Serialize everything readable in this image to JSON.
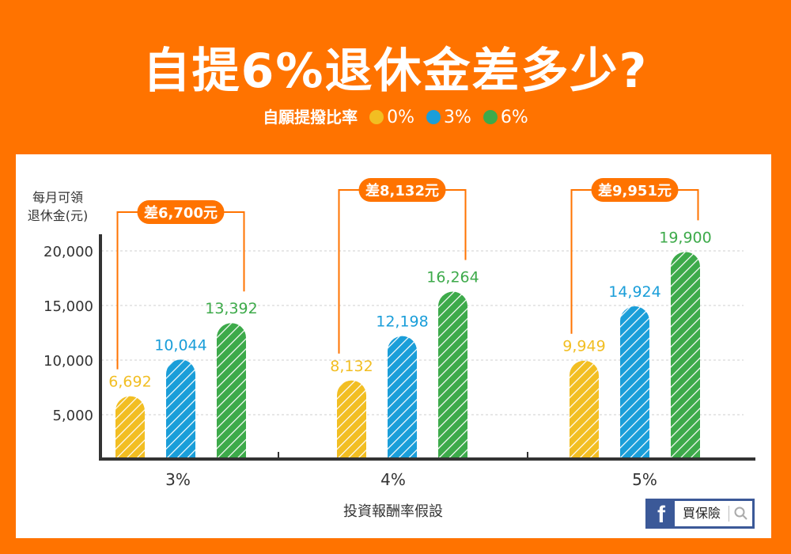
{
  "header": {
    "title": "自提6%退休金差多少?",
    "legend_label": "自願提撥比率"
  },
  "badge": {
    "text": "買保險"
  },
  "chart_data": {
    "type": "bar",
    "ylabel_line1": "每月可領",
    "ylabel_line2": "退休金(元)",
    "xlabel": "投資報酬率假設",
    "categories": [
      "3%",
      "4%",
      "5%"
    ],
    "yticks": [
      "5,000",
      "10,000",
      "15,000",
      "20,000"
    ],
    "ylim": [
      0,
      20000
    ],
    "grid": true,
    "series": [
      {
        "name": "0%",
        "color": "#F2BE22",
        "values": [
          6692,
          8132,
          9949
        ],
        "labels": [
          "6,692",
          "8,132",
          "9,949"
        ]
      },
      {
        "name": "3%",
        "color": "#1A9ED9",
        "values": [
          10044,
          12198,
          14924
        ],
        "labels": [
          "10,044",
          "12,198",
          "14,924"
        ]
      },
      {
        "name": "6%",
        "color": "#3DAA4A",
        "values": [
          13392,
          16264,
          19900
        ],
        "labels": [
          "13,392",
          "16,264",
          "19,900"
        ]
      }
    ],
    "annotations": [
      "差6,700元",
      "差8,132元",
      "差9,951元"
    ],
    "accent_color": "#FF7300"
  }
}
